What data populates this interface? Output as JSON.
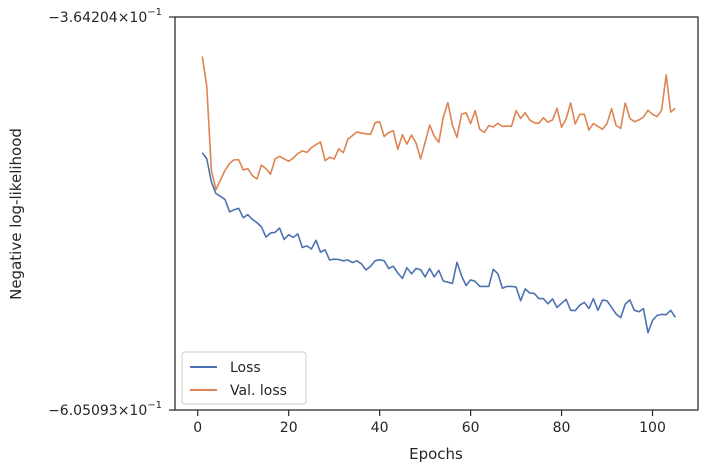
{
  "chart_data": {
    "type": "line",
    "xlabel": "Epochs",
    "ylabel": "Negative log-likelihood",
    "xlim": [
      -5,
      110
    ],
    "ylim": [
      -0.605093,
      -0.364204
    ],
    "y_scale": "log-negative",
    "grid": false,
    "legend_placement": "lower-left",
    "x_ticks": [
      0,
      20,
      40,
      60,
      80,
      100
    ],
    "x_tick_labels": [
      "0",
      "20",
      "40",
      "60",
      "80",
      "100"
    ],
    "y_tick_labels": [
      {
        "base": "−3.64204×10",
        "exp": "−1"
      },
      {
        "base": "−6.05093×10",
        "exp": "−1"
      }
    ],
    "series": [
      {
        "name": "Loss",
        "color": "#4c72b0",
        "x": [
          1,
          2,
          3,
          4,
          5,
          6,
          7,
          8,
          9,
          10,
          11,
          12,
          13,
          14,
          15,
          16,
          17,
          18,
          19,
          20,
          21,
          22,
          23,
          24,
          25,
          26,
          27,
          28,
          29,
          30,
          31,
          32,
          33,
          34,
          35,
          36,
          37,
          38,
          39,
          40,
          41,
          42,
          43,
          44,
          45,
          46,
          47,
          48,
          49,
          50,
          51,
          52,
          53,
          54,
          55,
          56,
          57,
          58,
          59,
          60,
          61,
          62,
          63,
          64,
          65,
          66,
          67,
          68,
          69,
          70,
          71,
          72,
          73,
          74,
          75,
          76,
          77,
          78,
          79,
          80,
          81,
          82,
          83,
          84,
          85,
          86,
          87,
          88,
          89,
          90,
          91,
          92,
          93,
          94,
          95,
          96,
          97,
          98,
          99,
          100,
          101,
          102,
          103,
          104,
          105
        ],
        "values": [
          -0.434,
          -0.4375,
          -0.4508,
          -0.4575,
          -0.4592,
          -0.461,
          -0.4685,
          -0.4672,
          -0.4663,
          -0.472,
          -0.4702,
          -0.473,
          -0.475,
          -0.4775,
          -0.484,
          -0.4815,
          -0.481,
          -0.4783,
          -0.4855,
          -0.4825,
          -0.4842,
          -0.482,
          -0.4905,
          -0.4895,
          -0.4915,
          -0.486,
          -0.4935,
          -0.492,
          -0.4985,
          -0.498,
          -0.4982,
          -0.499,
          -0.4985,
          -0.5002,
          -0.499,
          -0.501,
          -0.505,
          -0.5025,
          -0.499,
          -0.4983,
          -0.499,
          -0.504,
          -0.5025,
          -0.507,
          -0.5105,
          -0.5035,
          -0.5075,
          -0.504,
          -0.5048,
          -0.5095,
          -0.504,
          -0.5095,
          -0.5052,
          -0.5122,
          -0.513,
          -0.5138,
          -0.5,
          -0.5088,
          -0.5152,
          -0.5115,
          -0.5125,
          -0.5158,
          -0.5158,
          -0.5158,
          -0.5045,
          -0.5075,
          -0.517,
          -0.5158,
          -0.5158,
          -0.5162,
          -0.5255,
          -0.5175,
          -0.5202,
          -0.5205,
          -0.524,
          -0.524,
          -0.5275,
          -0.5242,
          -0.53,
          -0.5272,
          -0.5245,
          -0.532,
          -0.5322,
          -0.5285,
          -0.5265,
          -0.5308,
          -0.524,
          -0.532,
          -0.525,
          -0.5255,
          -0.53,
          -0.5345,
          -0.537,
          -0.5278,
          -0.5248,
          -0.532,
          -0.533,
          -0.5308,
          -0.5475,
          -0.539,
          -0.5355,
          -0.5348,
          -0.535,
          -0.532,
          -0.5368
        ]
      },
      {
        "name": "Val. loss",
        "color": "#dd8452",
        "x": [
          1,
          2,
          3,
          4,
          5,
          6,
          7,
          8,
          9,
          10,
          11,
          12,
          13,
          14,
          15,
          16,
          17,
          18,
          19,
          20,
          21,
          22,
          23,
          24,
          25,
          26,
          27,
          28,
          29,
          30,
          31,
          32,
          33,
          34,
          35,
          36,
          37,
          38,
          39,
          40,
          41,
          42,
          43,
          44,
          45,
          46,
          47,
          48,
          49,
          50,
          51,
          52,
          53,
          54,
          55,
          56,
          57,
          58,
          59,
          60,
          61,
          62,
          63,
          64,
          65,
          66,
          67,
          68,
          69,
          70,
          71,
          72,
          73,
          74,
          75,
          76,
          77,
          78,
          79,
          80,
          81,
          82,
          83,
          84,
          85,
          86,
          87,
          88,
          89,
          90,
          91,
          92,
          93,
          94,
          95,
          96,
          97,
          98,
          99,
          100,
          101,
          102,
          103,
          104,
          105
        ],
        "values": [
          -0.3832,
          -0.3985,
          -0.444,
          -0.4552,
          -0.4495,
          -0.444,
          -0.44,
          -0.438,
          -0.438,
          -0.4438,
          -0.443,
          -0.447,
          -0.449,
          -0.441,
          -0.443,
          -0.4462,
          -0.4375,
          -0.436,
          -0.4375,
          -0.4388,
          -0.437,
          -0.4345,
          -0.433,
          -0.4338,
          -0.4312,
          -0.4295,
          -0.428,
          -0.4385,
          -0.4365,
          -0.4375,
          -0.4318,
          -0.434,
          -0.4265,
          -0.4245,
          -0.4225,
          -0.4232,
          -0.4235,
          -0.4238,
          -0.4175,
          -0.417,
          -0.425,
          -0.4228,
          -0.4218,
          -0.432,
          -0.424,
          -0.4292,
          -0.4242,
          -0.4285,
          -0.4375,
          -0.4282,
          -0.4188,
          -0.4248,
          -0.4282,
          -0.4145,
          -0.4068,
          -0.4188,
          -0.4255,
          -0.413,
          -0.4122,
          -0.418,
          -0.411,
          -0.421,
          -0.4228,
          -0.419,
          -0.4198,
          -0.4178,
          -0.4195,
          -0.4192,
          -0.4195,
          -0.411,
          -0.4152,
          -0.4122,
          -0.416,
          -0.4175,
          -0.4178,
          -0.4148,
          -0.4172,
          -0.416,
          -0.4098,
          -0.42,
          -0.4155,
          -0.407,
          -0.4182,
          -0.413,
          -0.413,
          -0.4215,
          -0.418,
          -0.4195,
          -0.421,
          -0.418,
          -0.41,
          -0.419,
          -0.4205,
          -0.407,
          -0.415,
          -0.417,
          -0.416,
          -0.4145,
          -0.4108,
          -0.413,
          -0.4142,
          -0.4108,
          -0.3925,
          -0.4118,
          -0.4098
        ]
      }
    ]
  }
}
